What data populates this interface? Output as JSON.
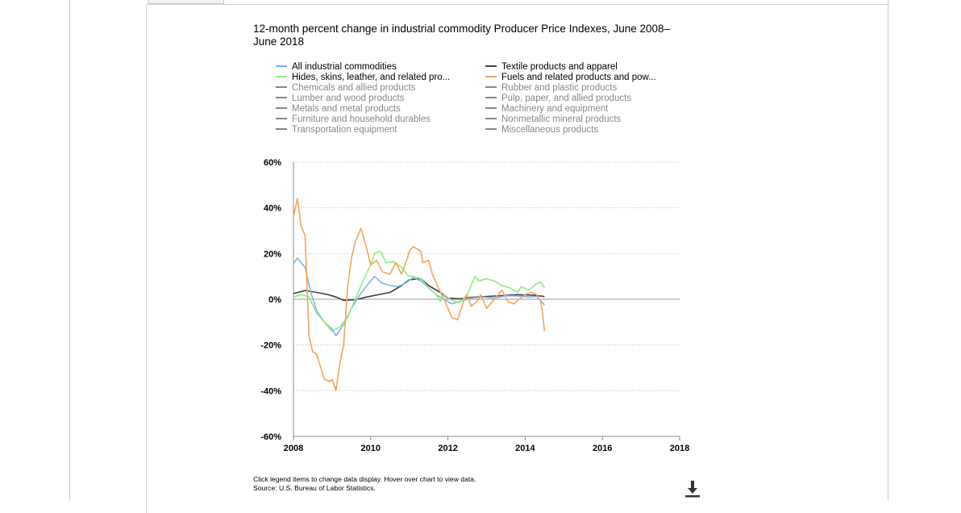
{
  "colors": {
    "all_industrial": "#7cb5ec",
    "hides": "#90ed7d",
    "textile": "#434348",
    "fuels": "#f7a35c",
    "inactive": "#888888",
    "text": "#000000",
    "grid": "#c0c0c0",
    "axis": "#888888"
  },
  "legend": {
    "items": [
      {
        "label": "All industrial commodities",
        "color": "#7cb5ec",
        "active": true
      },
      {
        "label": "Hides, skins, leather, and related pro...",
        "color": "#90ed7d",
        "active": true
      },
      {
        "label": "Chemicals and allied products",
        "color": "#888888",
        "active": false
      },
      {
        "label": "Lumber and wood products",
        "color": "#888888",
        "active": false
      },
      {
        "label": "Metals and metal products",
        "color": "#888888",
        "active": false
      },
      {
        "label": "Furniture and household durables",
        "color": "#888888",
        "active": false
      },
      {
        "label": "Transportation equipment",
        "color": "#888888",
        "active": false
      },
      {
        "label": "Textile products and apparel",
        "color": "#434348",
        "active": true
      },
      {
        "label": "Fuels and related products and pow...",
        "color": "#f7a35c",
        "active": true
      },
      {
        "label": "Rubber and plastic products",
        "color": "#888888",
        "active": false
      },
      {
        "label": "Pulp, paper, and allied products",
        "color": "#888888",
        "active": false
      },
      {
        "label": "Machinery and equipment",
        "color": "#888888",
        "active": false
      },
      {
        "label": "Nonmetallic mineral products",
        "color": "#888888",
        "active": false
      },
      {
        "label": "Miscellaneous products",
        "color": "#888888",
        "active": false
      }
    ]
  },
  "footnote": {
    "line1": "Click legend items to change data display. Hover over chart to view data.",
    "line2": "Source: U.S. Bureau of Labor Statistics."
  },
  "download_icon": "download-icon",
  "chart_data": {
    "type": "line",
    "title": "12-month percent change in industrial commodity Producer Price Indexes, June 2008–June 2018",
    "xlabel": "",
    "ylabel": "",
    "xlim": [
      2008,
      2018
    ],
    "ylim": [
      -60,
      60
    ],
    "x_ticks": [
      "2008",
      "2010",
      "2012",
      "2014",
      "2016",
      "2018"
    ],
    "y_ticks": [
      "60%",
      "40%",
      "20%",
      "0%",
      "-20%",
      "-40%",
      "-60%"
    ],
    "grid": true,
    "legend_position": "top",
    "series": [
      {
        "name": "Textile products and apparel",
        "color": "#434348",
        "points": [
          [
            2008.0,
            2.5
          ],
          [
            2008.3,
            3.8
          ],
          [
            2008.6,
            3.0
          ],
          [
            2008.9,
            2.0
          ],
          [
            2009.1,
            1.0
          ],
          [
            2009.3,
            -0.5
          ],
          [
            2009.6,
            -0.2
          ],
          [
            2009.9,
            1.0
          ],
          [
            2010.2,
            2.0
          ],
          [
            2010.5,
            3.0
          ],
          [
            2010.8,
            6.0
          ],
          [
            2011.0,
            8.5
          ],
          [
            2011.3,
            9.0
          ],
          [
            2011.5,
            6.0
          ],
          [
            2011.8,
            3.0
          ],
          [
            2012.0,
            0.5
          ],
          [
            2012.3,
            0.2
          ],
          [
            2012.6,
            0.8
          ],
          [
            2013.0,
            1.2
          ],
          [
            2013.4,
            1.6
          ],
          [
            2013.8,
            2.0
          ],
          [
            2014.2,
            1.8
          ],
          [
            2014.5,
            1.2
          ]
        ]
      },
      {
        "name": "All industrial commodities",
        "color": "#7cb5ec",
        "points": [
          [
            2008.0,
            15.5
          ],
          [
            2008.1,
            18.0
          ],
          [
            2008.3,
            14.0
          ],
          [
            2008.45,
            3.0
          ],
          [
            2008.6,
            -5.0
          ],
          [
            2008.8,
            -10.0
          ],
          [
            2009.0,
            -13.0
          ],
          [
            2009.1,
            -16.0
          ],
          [
            2009.3,
            -11.0
          ],
          [
            2009.5,
            -4.0
          ],
          [
            2009.7,
            1.5
          ],
          [
            2009.9,
            6.0
          ],
          [
            2010.1,
            10.0
          ],
          [
            2010.3,
            7.0
          ],
          [
            2010.5,
            6.0
          ],
          [
            2010.7,
            5.5
          ],
          [
            2010.9,
            7.0
          ],
          [
            2011.1,
            9.5
          ],
          [
            2011.3,
            8.0
          ],
          [
            2011.5,
            5.0
          ],
          [
            2011.7,
            2.0
          ],
          [
            2011.9,
            0.0
          ],
          [
            2012.1,
            -2.0
          ],
          [
            2012.3,
            -1.0
          ],
          [
            2012.6,
            0.5
          ],
          [
            2012.9,
            1.0
          ],
          [
            2013.2,
            0.5
          ],
          [
            2013.5,
            1.5
          ],
          [
            2013.8,
            1.5
          ],
          [
            2014.1,
            1.0
          ],
          [
            2014.3,
            1.2
          ],
          [
            2014.5,
            -2.5
          ]
        ]
      },
      {
        "name": "Hides, skins, leather, and related products",
        "color": "#90ed7d",
        "points": [
          [
            2008.0,
            1.0
          ],
          [
            2008.2,
            2.0
          ],
          [
            2008.4,
            1.0
          ],
          [
            2008.6,
            -6.0
          ],
          [
            2008.8,
            -10.0
          ],
          [
            2009.0,
            -14.0
          ],
          [
            2009.2,
            -12.0
          ],
          [
            2009.4,
            -8.0
          ],
          [
            2009.6,
            0.0
          ],
          [
            2009.8,
            8.0
          ],
          [
            2010.0,
            15.0
          ],
          [
            2010.1,
            20.0
          ],
          [
            2010.25,
            21.0
          ],
          [
            2010.4,
            16.0
          ],
          [
            2010.6,
            16.5
          ],
          [
            2010.8,
            14.0
          ],
          [
            2010.95,
            10.5
          ],
          [
            2011.1,
            10.0
          ],
          [
            2011.3,
            9.0
          ],
          [
            2011.5,
            5.0
          ],
          [
            2011.7,
            2.0
          ],
          [
            2011.8,
            -1.0
          ],
          [
            2011.9,
            2.0
          ],
          [
            2012.1,
            -0.5
          ],
          [
            2012.3,
            -1.5
          ],
          [
            2012.5,
            2.0
          ],
          [
            2012.6,
            6.0
          ],
          [
            2012.7,
            10.0
          ],
          [
            2012.8,
            8.0
          ],
          [
            2013.0,
            9.0
          ],
          [
            2013.2,
            8.0
          ],
          [
            2013.4,
            6.0
          ],
          [
            2013.6,
            5.0
          ],
          [
            2013.8,
            3.0
          ],
          [
            2013.9,
            5.5
          ],
          [
            2014.1,
            4.0
          ],
          [
            2014.3,
            7.0
          ],
          [
            2014.4,
            7.5
          ],
          [
            2014.5,
            5.0
          ]
        ]
      },
      {
        "name": "Fuels and related products and power",
        "color": "#f7a35c",
        "points": [
          [
            2008.0,
            36.0
          ],
          [
            2008.1,
            44.0
          ],
          [
            2008.2,
            32.0
          ],
          [
            2008.3,
            28.0
          ],
          [
            2008.4,
            -16.0
          ],
          [
            2008.5,
            -23.0
          ],
          [
            2008.6,
            -24.0
          ],
          [
            2008.8,
            -35.0
          ],
          [
            2008.95,
            -36.0
          ],
          [
            2009.0,
            -35.0
          ],
          [
            2009.1,
            -40.0
          ],
          [
            2009.2,
            -28.0
          ],
          [
            2009.3,
            -20.0
          ],
          [
            2009.4,
            5.0
          ],
          [
            2009.5,
            18.0
          ],
          [
            2009.6,
            25.0
          ],
          [
            2009.75,
            31.0
          ],
          [
            2009.9,
            22.0
          ],
          [
            2010.0,
            15.0
          ],
          [
            2010.15,
            17.0
          ],
          [
            2010.3,
            12.0
          ],
          [
            2010.5,
            11.0
          ],
          [
            2010.65,
            16.0
          ],
          [
            2010.8,
            11.0
          ],
          [
            2010.95,
            18.0
          ],
          [
            2011.0,
            21.0
          ],
          [
            2011.1,
            23.0
          ],
          [
            2011.3,
            21.0
          ],
          [
            2011.35,
            16.0
          ],
          [
            2011.5,
            17.0
          ],
          [
            2011.6,
            11.0
          ],
          [
            2011.75,
            5.0
          ],
          [
            2011.9,
            0.0
          ],
          [
            2012.0,
            -4.0
          ],
          [
            2012.1,
            -8.0
          ],
          [
            2012.25,
            -9.0
          ],
          [
            2012.4,
            -1.0
          ],
          [
            2012.5,
            2.0
          ],
          [
            2012.6,
            -3.0
          ],
          [
            2012.75,
            -1.0
          ],
          [
            2012.85,
            2.0
          ],
          [
            2013.0,
            -4.0
          ],
          [
            2013.15,
            -1.0
          ],
          [
            2013.3,
            2.0
          ],
          [
            2013.4,
            4.0
          ],
          [
            2013.55,
            -1.0
          ],
          [
            2013.7,
            -2.0
          ],
          [
            2013.85,
            0.0
          ],
          [
            2014.0,
            2.0
          ],
          [
            2014.15,
            3.0
          ],
          [
            2014.3,
            2.0
          ],
          [
            2014.4,
            -1.0
          ],
          [
            2014.45,
            -6.0
          ],
          [
            2014.5,
            -14.0
          ]
        ]
      }
    ]
  }
}
